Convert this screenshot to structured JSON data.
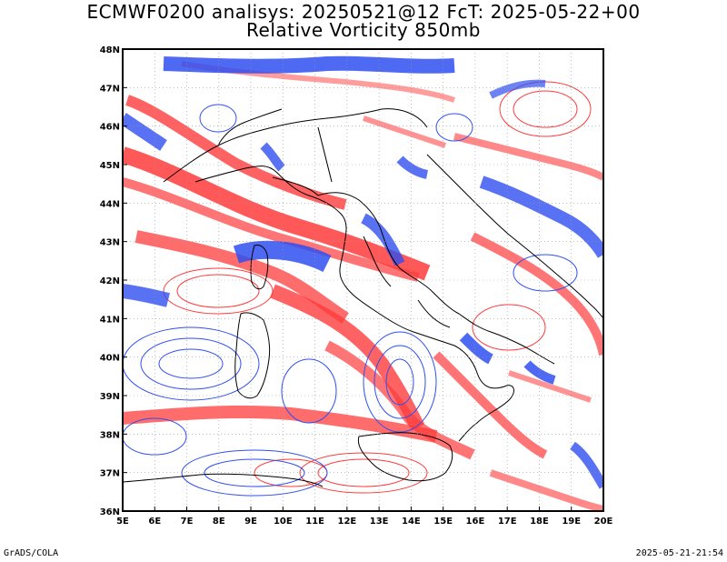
{
  "title": {
    "line1": "ECMWF0200 analisys: 20250521@12 FcT: 2025-05-22+00",
    "line2": "Relative Vorticity 850mb"
  },
  "map": {
    "lon_range": [
      5,
      20
    ],
    "lat_range": [
      36,
      48
    ],
    "lon_labels": [
      "5E",
      "6E",
      "7E",
      "8E",
      "9E",
      "10E",
      "11E",
      "12E",
      "13E",
      "14E",
      "15E",
      "16E",
      "17E",
      "18E",
      "19E",
      "20E"
    ],
    "lat_labels": [
      "36N",
      "37N",
      "38N",
      "39N",
      "40N",
      "41N",
      "42N",
      "43N",
      "44N",
      "45N",
      "46N",
      "47N",
      "48N"
    ],
    "colors": {
      "positive": "#ff3b3b",
      "negative": "#2f4ff0",
      "background": "#ffffff",
      "coast": "#000000"
    }
  },
  "footer": {
    "left": "GrADS/COLA",
    "right": "2025-05-21-21:54"
  }
}
